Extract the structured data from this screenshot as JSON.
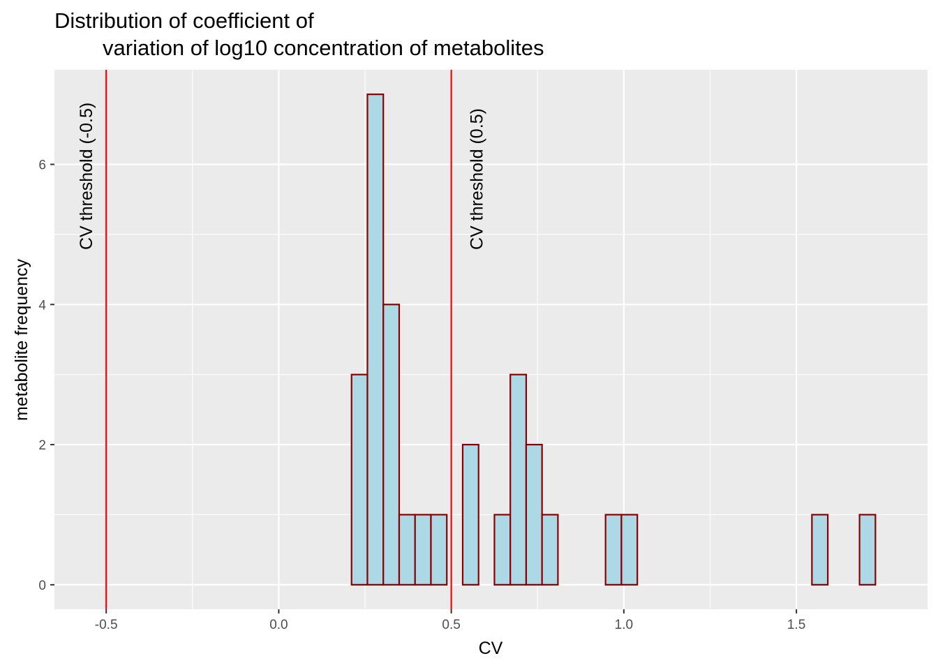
{
  "chart_data": {
    "type": "bar",
    "title_lines": [
      "Distribution of coefficient of",
      "variation of log10 concentration of metabolites"
    ],
    "xlabel": "CV",
    "ylabel": "metabolite frequency",
    "xlim": [
      -0.65,
      1.88
    ],
    "ylim": [
      -0.35,
      7.35
    ],
    "x_ticks": [
      -0.5,
      0.0,
      0.5,
      1.0,
      1.5
    ],
    "x_tick_labels": [
      "-0.5",
      "0.0",
      "0.5",
      "1.0",
      "1.5"
    ],
    "y_ticks": [
      0,
      2,
      4,
      6
    ],
    "y_tick_labels": [
      "0",
      "2",
      "4",
      "6"
    ],
    "bin_start": -0.525,
    "bin_width": 0.046,
    "counts": [
      0,
      0,
      0,
      0,
      0,
      0,
      0,
      0,
      0,
      0,
      0,
      0,
      0,
      0,
      0,
      0,
      3,
      7,
      4,
      1,
      1,
      1,
      0,
      2,
      0,
      1,
      3,
      2,
      1,
      0,
      0,
      0,
      1,
      1,
      0,
      0,
      0,
      0,
      0,
      0,
      0,
      0,
      0,
      0,
      0,
      1,
      0,
      0,
      1
    ],
    "bar_fill": "#add8e6",
    "bar_stroke": "#8b0000",
    "grid": true,
    "panel_background": "#ebebeb",
    "vlines": [
      {
        "x": -0.5,
        "color": "#ff0000",
        "label": "CV threshold (-0.5)"
      },
      {
        "x": 0.5,
        "color": "#ff0000",
        "label": "CV threshold (0.5)"
      }
    ]
  }
}
